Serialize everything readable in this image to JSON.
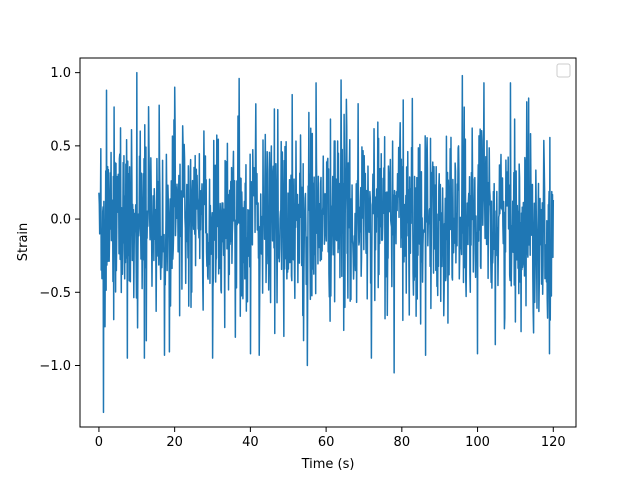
{
  "chart_data": {
    "type": "line",
    "title": "",
    "xlabel": "Time (s)",
    "ylabel": "Strain",
    "xlim": [
      -5,
      126
    ],
    "ylim": [
      -1.42,
      1.1
    ],
    "x_ticks": [
      0,
      20,
      40,
      60,
      80,
      100,
      120
    ],
    "y_ticks": [
      -1.0,
      -0.5,
      0.0,
      0.5,
      1.0
    ],
    "x_tick_labels": [
      "0",
      "20",
      "40",
      "60",
      "80",
      "100",
      "120"
    ],
    "y_tick_labels": [
      "−1.0",
      "−0.5",
      "0.0",
      "0.5",
      "1.0"
    ],
    "grid": false,
    "legend": {
      "placement": "top-right",
      "entries": []
    },
    "colors": {
      "series": "#1f77b4",
      "axes": "#000000",
      "background": "#ffffff"
    },
    "series": [
      {
        "x_start": 0,
        "x_end": 120,
        "n_points": 1200,
        "envelope_extremes": [
          {
            "x": 0.5,
            "y": 0.48
          },
          {
            "x": 1.2,
            "y": -1.32
          },
          {
            "x": 2.0,
            "y": 0.88
          },
          {
            "x": 7.5,
            "y": -0.95
          },
          {
            "x": 10.0,
            "y": 1.0
          },
          {
            "x": 12.0,
            "y": -0.95
          },
          {
            "x": 20.0,
            "y": 0.9
          },
          {
            "x": 30.0,
            "y": -0.95
          },
          {
            "x": 37.0,
            "y": 0.96
          },
          {
            "x": 40.0,
            "y": -0.92
          },
          {
            "x": 51.0,
            "y": 0.85
          },
          {
            "x": 55.0,
            "y": -1.0
          },
          {
            "x": 64.0,
            "y": 0.95
          },
          {
            "x": 72.0,
            "y": -0.95
          },
          {
            "x": 78.0,
            "y": -1.05
          },
          {
            "x": 96.0,
            "y": 0.98
          },
          {
            "x": 100.0,
            "y": -0.92
          },
          {
            "x": 113.0,
            "y": 0.8
          },
          {
            "x": 119.0,
            "y": -0.92
          },
          {
            "x": 120.0,
            "y": 0.13
          }
        ]
      }
    ]
  }
}
